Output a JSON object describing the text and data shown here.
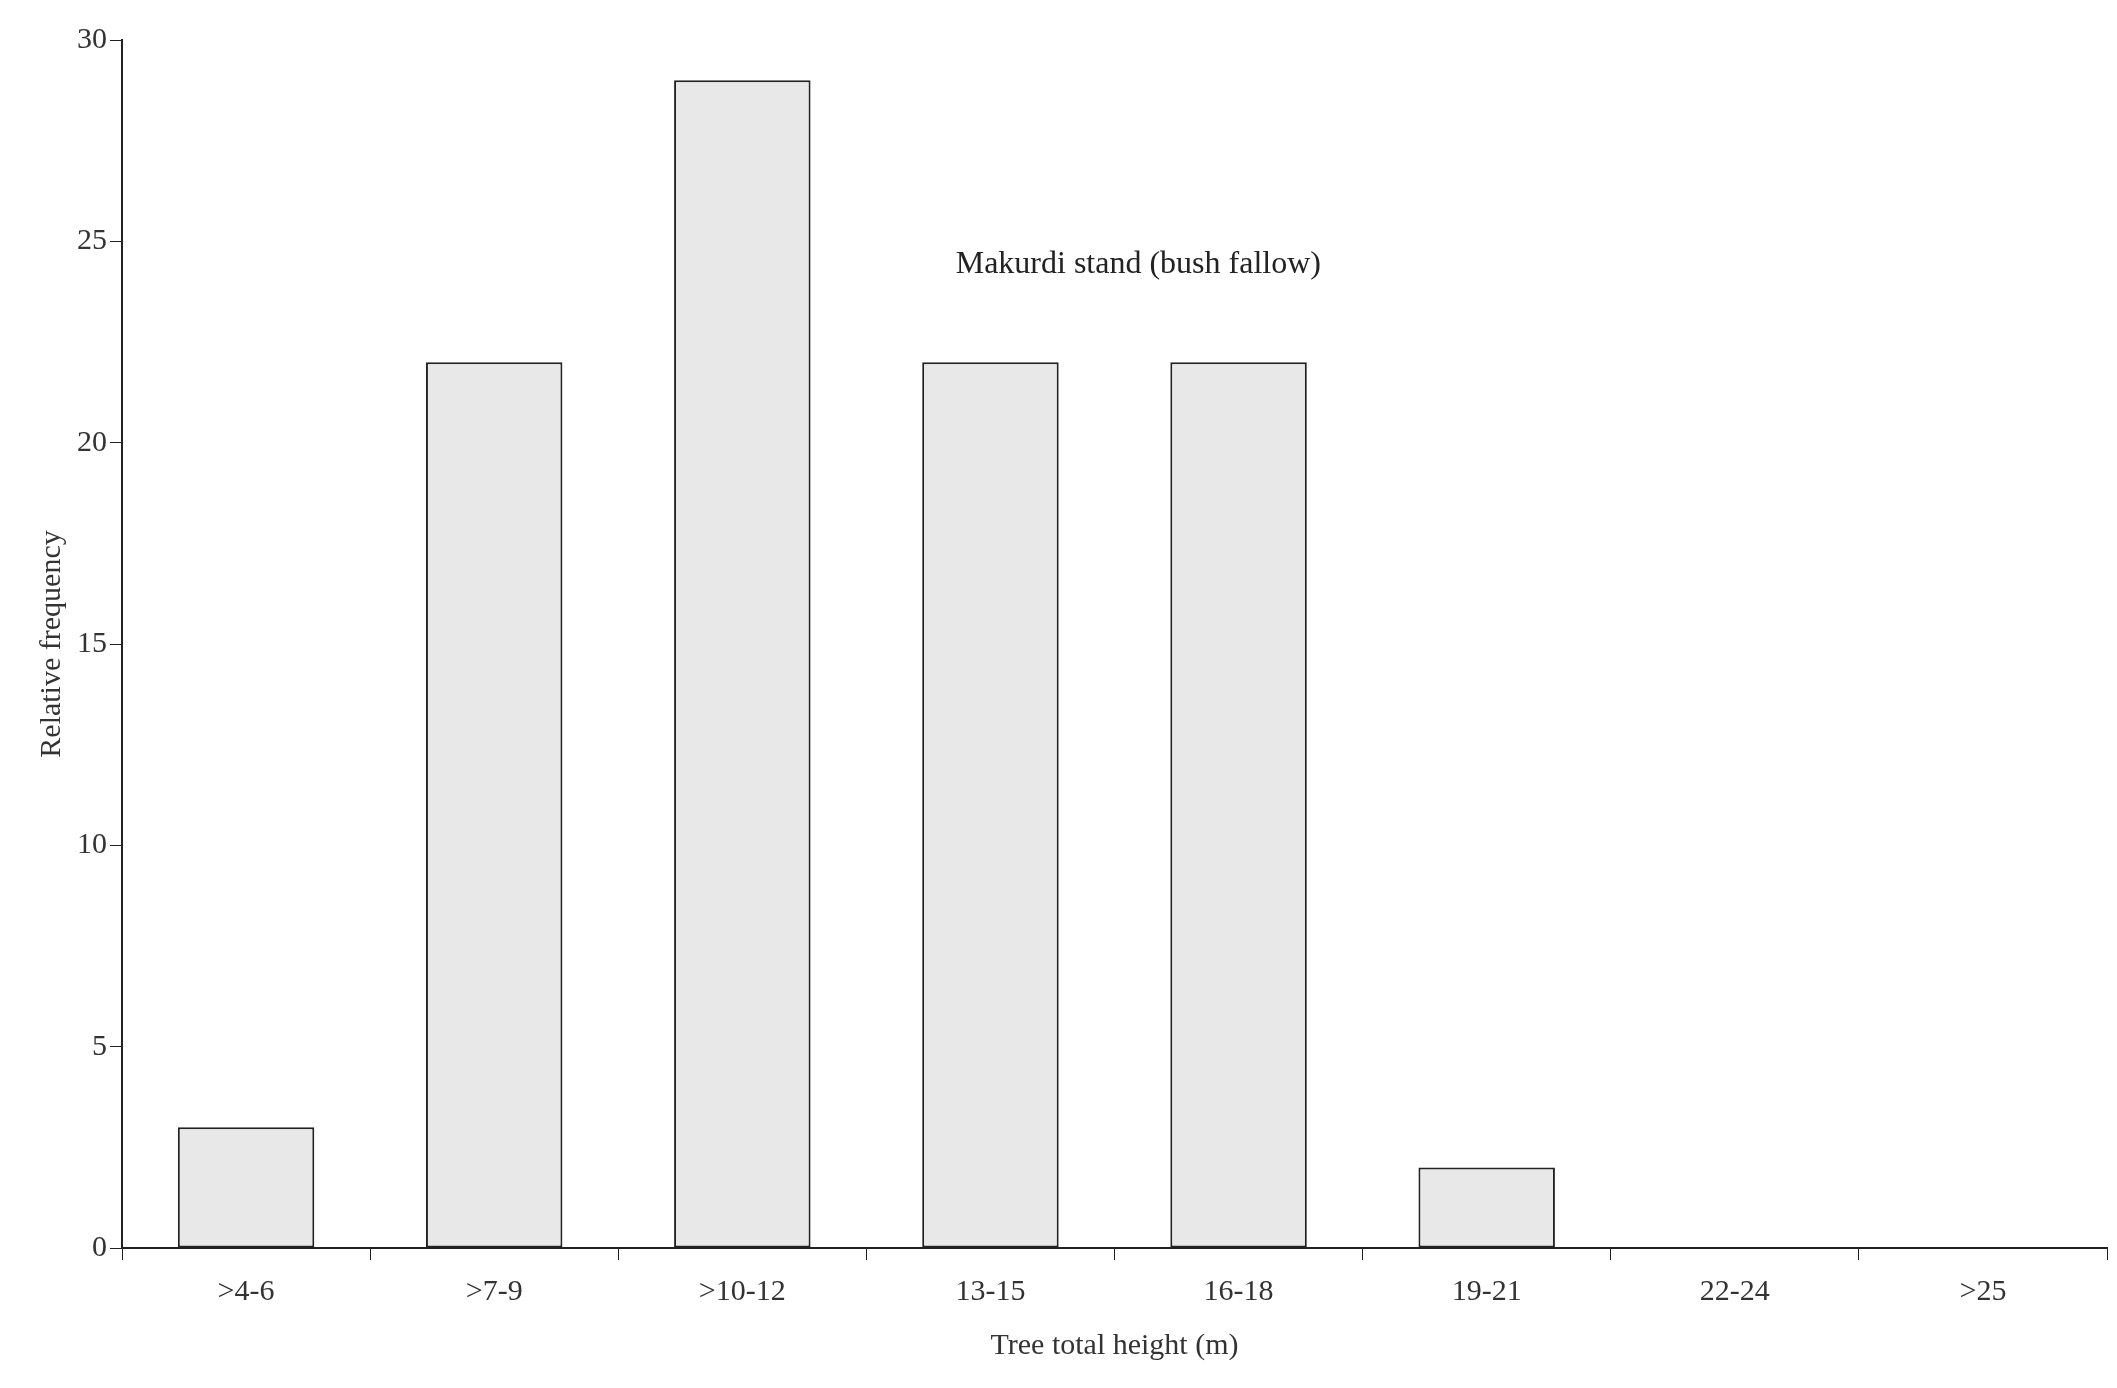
{
  "chart_data": {
    "type": "bar",
    "xlabel": "Tree total height (m)",
    "ylabel": "Relative frequency",
    "annotations": [
      "Makurdi stand (bush fallow)"
    ],
    "categories": [
      ">4-6",
      ">7-9",
      ">10-12",
      "13-15",
      "16-18",
      "19-21",
      "22-24",
      ">25"
    ],
    "values": [
      3,
      22,
      29,
      22,
      22,
      2,
      0,
      0
    ],
    "color": "#e8e8e8",
    "ylim": [
      0,
      30
    ],
    "yticks": [
      0,
      5,
      10,
      15,
      20,
      25,
      30
    ],
    "grid": false
  }
}
